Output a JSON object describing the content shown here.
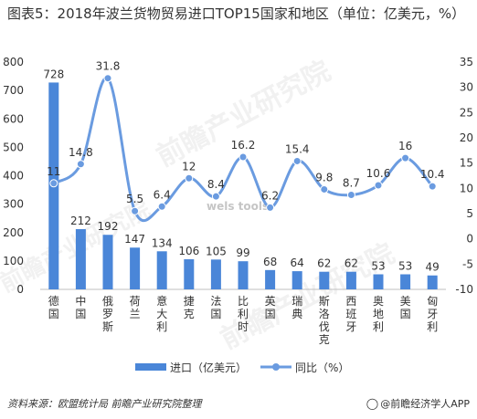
{
  "title": "图表5：2018年波兰货物贸易进口TOP15国家和地区（单位：亿美元，%）",
  "source": "资料来源：欧盟统计局 前瞻产业研究院整理",
  "brand": "@前瞻经济学人APP",
  "watermarks": [
    "前瞻产业研究院",
    "前瞻产业研究院",
    "前瞻产业研究院",
    "wels tools"
  ],
  "colors": {
    "bar": "#4a86d8",
    "line": "#6a9be0",
    "axis": "#333333",
    "grid": "#d9d9d9"
  },
  "chart_data": {
    "type": "bar",
    "categories": [
      "德国",
      "中国",
      "俄罗斯",
      "荷兰",
      "意大利",
      "捷克",
      "法国",
      "比利时",
      "英国",
      "瑞典",
      "斯洛伐克",
      "西班牙",
      "奥地利",
      "美国",
      "匈牙利"
    ],
    "series": [
      {
        "name": "进口（亿美元）",
        "type": "bar",
        "axis": "left",
        "values": [
          728,
          212,
          192,
          147,
          134,
          106,
          105,
          99,
          68,
          64,
          62,
          62,
          53,
          53,
          49
        ]
      },
      {
        "name": "同比（%）",
        "type": "line",
        "axis": "right",
        "values": [
          11,
          14.8,
          31.8,
          5.5,
          6.4,
          12,
          8.4,
          16.2,
          6.2,
          15.4,
          9.8,
          8.7,
          10.6,
          16,
          10.4
        ]
      }
    ],
    "ylim_left": [
      0,
      800
    ],
    "yticks_left": [
      0,
      100,
      200,
      300,
      400,
      500,
      600,
      700,
      800
    ],
    "ylim_right": [
      -10,
      35
    ],
    "yticks_right": [
      -10,
      -5,
      0,
      5,
      10,
      15,
      20,
      25,
      30,
      35
    ],
    "grid": false,
    "legend_position": "bottom"
  }
}
